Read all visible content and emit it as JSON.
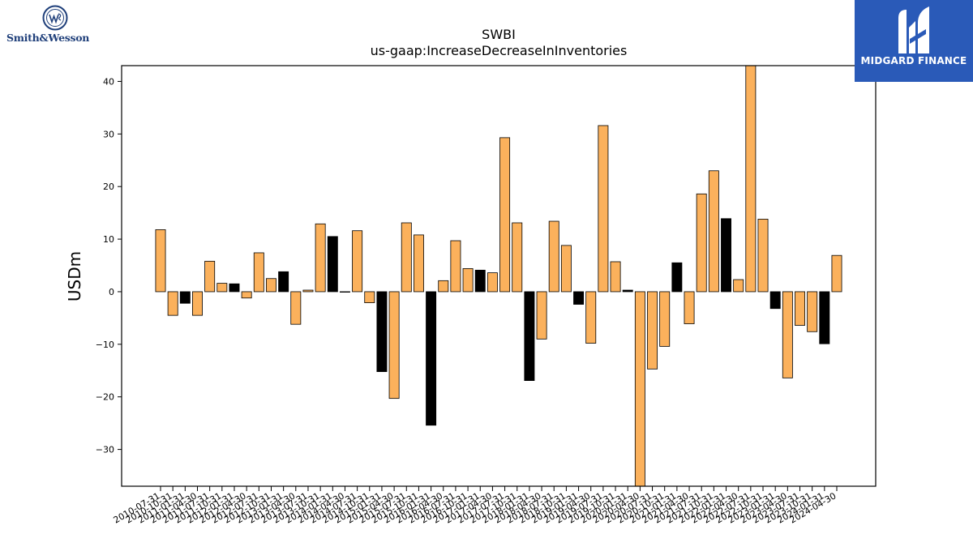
{
  "logos": {
    "left_brand": "Smith&Wesson",
    "right_brand": "MIDGARD FINANCE"
  },
  "colors": {
    "bar_fill": "#fbb15c",
    "bar_fill_alt": "#000000",
    "bar_edge": "#000000",
    "logo_left": "#1f3f7a",
    "logo_right_bg": "#2a5ab8"
  },
  "chart_data": {
    "type": "bar",
    "title": "SWBI",
    "subtitle": "us-gaap:IncreaseDecreaseInInventories",
    "xlabel": "",
    "ylabel": "USDm",
    "ylim": [
      -37,
      43
    ],
    "yticks": [
      -30,
      -20,
      -10,
      0,
      10,
      20,
      30,
      40
    ],
    "grid": false,
    "categories": [
      "2010-07-31",
      "2010-10-31",
      "2011-01-31",
      "2011-04-30",
      "2011-07-31",
      "2011-10-31",
      "2012-01-31",
      "2012-04-30",
      "2012-07-31",
      "2012-10-31",
      "2013-01-31",
      "2013-04-30",
      "2013-07-31",
      "2013-10-31",
      "2014-01-31",
      "2014-04-30",
      "2014-07-31",
      "2014-10-31",
      "2015-01-31",
      "2015-04-30",
      "2015-07-31",
      "2015-10-31",
      "2016-01-31",
      "2016-04-30",
      "2016-07-31",
      "2016-10-31",
      "2017-01-31",
      "2017-04-30",
      "2017-07-31",
      "2017-10-31",
      "2018-01-31",
      "2018-04-30",
      "2018-07-31",
      "2018-10-31",
      "2019-01-31",
      "2019-04-30",
      "2019-07-31",
      "2019-10-31",
      "2020-01-31",
      "2020-04-30",
      "2020-07-31",
      "2020-10-31",
      "2021-01-31",
      "2021-04-30",
      "2021-07-31",
      "2021-10-31",
      "2022-01-31",
      "2022-04-30",
      "2022-07-31",
      "2022-10-31",
      "2023-01-31",
      "2023-04-30",
      "2023-07-31",
      "2023-10-31",
      "2024-01-31",
      "2024-04-30"
    ],
    "values": [
      11.8,
      -4.5,
      -2.2,
      -4.5,
      5.8,
      1.6,
      1.5,
      -1.2,
      7.4,
      2.5,
      3.8,
      -6.2,
      0.3,
      12.9,
      10.5,
      0.0,
      11.6,
      -2.1,
      -15.2,
      -20.3,
      13.1,
      10.8,
      -25.4,
      2.1,
      9.7,
      4.4,
      4.1,
      3.6,
      29.3,
      13.1,
      -16.9,
      -9.0,
      13.4,
      8.8,
      -2.4,
      -9.8,
      31.6,
      5.7,
      0.3,
      -37.0,
      -14.7,
      -10.4,
      5.5,
      -6.1,
      18.6,
      23.0,
      13.9,
      2.3,
      43.0,
      13.8,
      -3.2,
      -16.4,
      -6.4,
      -7.6,
      -9.9,
      6.9
    ],
    "highlight": [
      false,
      false,
      true,
      false,
      false,
      false,
      true,
      false,
      false,
      false,
      true,
      false,
      false,
      false,
      true,
      false,
      false,
      false,
      true,
      false,
      false,
      false,
      true,
      false,
      false,
      false,
      true,
      false,
      false,
      false,
      true,
      false,
      false,
      false,
      true,
      false,
      false,
      false,
      true,
      false,
      false,
      false,
      true,
      false,
      false,
      false,
      true,
      false,
      false,
      false,
      true,
      false,
      false,
      false,
      true,
      false
    ]
  }
}
